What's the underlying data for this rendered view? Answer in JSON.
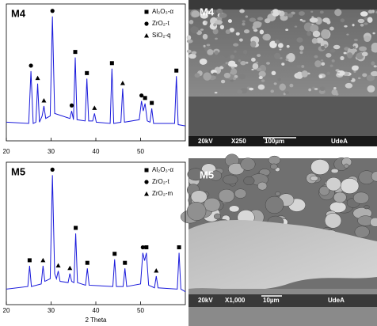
{
  "chart_data": [
    {
      "type": "line",
      "label": "M4",
      "color": "#1a1adb",
      "xlim": [
        20,
        60
      ],
      "xticks": [
        20,
        30,
        40,
        50
      ],
      "ylim": [
        0,
        110
      ],
      "series": [
        {
          "x": [
            20,
            25.0,
            25.5,
            26.0,
            26.6,
            27.0,
            27.4,
            28.0,
            28.4,
            28.8,
            29.8,
            30.3,
            30.8,
            34.2,
            34.6,
            35.0,
            35.4,
            35.8,
            37.6,
            38.0,
            38.4,
            39.3,
            39.7,
            40.1,
            43.2,
            43.6,
            44.0,
            45.6,
            46.0,
            46.4,
            49.7,
            50.2,
            50.6,
            51.0,
            51.5,
            52.1,
            52.5,
            52.9,
            57.6,
            58.0,
            58.4,
            60
          ],
          "values": [
            15,
            14,
            56,
            14,
            15,
            46,
            15,
            20,
            28,
            18,
            20,
            100,
            22,
            18,
            24,
            17,
            67,
            17,
            16,
            50,
            16,
            16,
            22,
            15,
            14,
            58,
            14,
            15,
            42,
            15,
            17,
            32,
            24,
            30,
            16,
            15,
            26,
            14,
            14,
            52,
            13,
            12
          ]
        }
      ],
      "markers": [
        {
          "name": "Al₂O₃-α",
          "shape": "square",
          "x": [
            35.4,
            38.0,
            43.6,
            51.0,
            52.5,
            58.0
          ]
        },
        {
          "name": "ZrO₂-t",
          "shape": "circle",
          "x": [
            25.5,
            30.3,
            34.6,
            50.2
          ]
        },
        {
          "name": "SiO₂-q",
          "shape": "triangle",
          "x": [
            27.0,
            28.4,
            39.7,
            46.0
          ]
        }
      ]
    },
    {
      "type": "line",
      "label": "M5",
      "color": "#1a1adb",
      "xlim": [
        20,
        60
      ],
      "xticks": [
        20,
        30,
        40,
        50
      ],
      "ylim": [
        0,
        110
      ],
      "xlabel": "2 Theta",
      "series": [
        {
          "x": [
            20,
            24.8,
            25.2,
            25.6,
            27.8,
            28.2,
            28.6,
            29.8,
            30.3,
            30.8,
            31.2,
            31.6,
            32.0,
            33.8,
            34.2,
            34.6,
            35.1,
            35.5,
            35.9,
            37.7,
            38.1,
            38.5,
            43.8,
            44.2,
            44.6,
            46.1,
            46.5,
            46.9,
            50.0,
            50.5,
            50.9,
            51.3,
            51.8,
            53.1,
            53.5,
            53.9,
            58.2,
            58.6,
            59.0,
            60
          ],
          "values": [
            12,
            14,
            30,
            14,
            16,
            30,
            18,
            20,
            100,
            24,
            20,
            26,
            18,
            17,
            24,
            18,
            17,
            55,
            17,
            15,
            28,
            15,
            14,
            35,
            14,
            14,
            28,
            14,
            16,
            40,
            34,
            40,
            15,
            13,
            22,
            13,
            12,
            40,
            12,
            10
          ]
        }
      ],
      "markers": [
        {
          "name": "Al₂O₃-α",
          "shape": "square",
          "x": [
            25.2,
            35.5,
            38.1,
            44.2,
            46.5,
            51.3,
            58.6
          ]
        },
        {
          "name": "ZrO₂-t",
          "shape": "circle",
          "x": [
            30.3,
            50.5
          ]
        },
        {
          "name": "ZrO₂-m",
          "shape": "triangle",
          "x": [
            28.2,
            31.6,
            34.2,
            53.5
          ]
        }
      ]
    }
  ],
  "images": [
    {
      "label": "M4",
      "voltage": "20kV",
      "magnification": "X250",
      "scale": "100µm",
      "lab": "UdeA"
    },
    {
      "label": "M5",
      "voltage": "20kV",
      "magnification": "X1,000",
      "scale": "10µm",
      "lab": "UdeA"
    }
  ]
}
